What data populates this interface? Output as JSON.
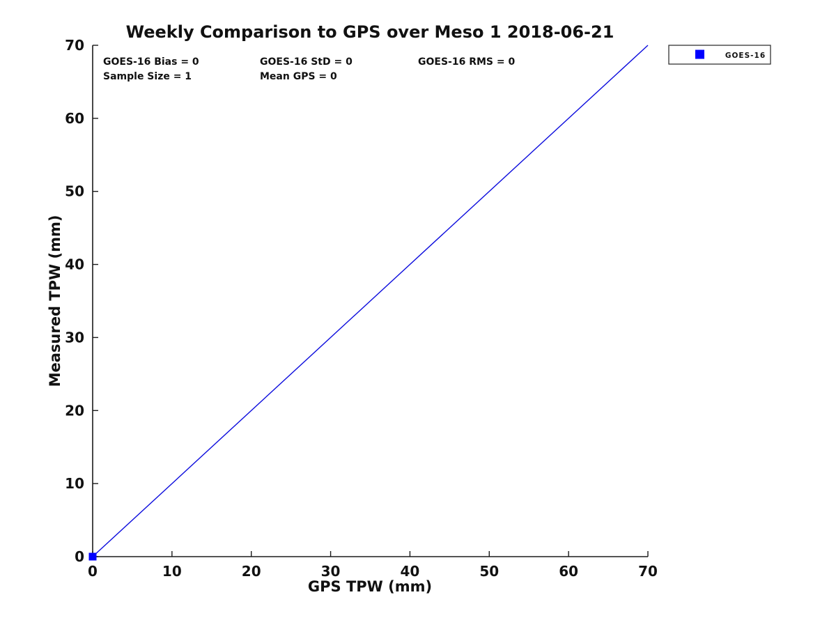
{
  "chart_data": {
    "type": "scatter",
    "title": "Weekly Comparison to GPS over Meso 1 2018-06-21",
    "xlabel": "GPS TPW (mm)",
    "ylabel": "Measured TPW (mm)",
    "xlim": [
      0,
      70
    ],
    "ylim": [
      0,
      70
    ],
    "xticks": [
      0,
      10,
      20,
      30,
      40,
      50,
      60,
      70
    ],
    "yticks": [
      0,
      10,
      20,
      30,
      40,
      50,
      60,
      70
    ],
    "grid": false,
    "series": [
      {
        "name": "GOES-16",
        "marker": "square",
        "color": "#0000ff",
        "points": [
          [
            0,
            0
          ]
        ]
      }
    ],
    "reference_line": {
      "name": "identity-line",
      "from": [
        0,
        0
      ],
      "to": [
        70,
        70
      ],
      "color": "#0b0bdd"
    },
    "annotations": [
      {
        "id": "bias",
        "text": "GOES-16 Bias = 0"
      },
      {
        "id": "std",
        "text": "GOES-16 StD = 0"
      },
      {
        "id": "rms",
        "text": "GOES-16 RMS = 0"
      },
      {
        "id": "sample_size",
        "text": "Sample Size = 1"
      },
      {
        "id": "mean_gps",
        "text": "Mean GPS = 0"
      }
    ],
    "legend": {
      "position": "outside-top-right",
      "entries": [
        {
          "label": "GOES-16",
          "marker": "square",
          "color": "#0000ff"
        }
      ]
    }
  },
  "colors": {
    "background": "#ffffff",
    "text": "#111111",
    "axis": "#1a1a1a",
    "accent_blue": "#0000ff"
  }
}
